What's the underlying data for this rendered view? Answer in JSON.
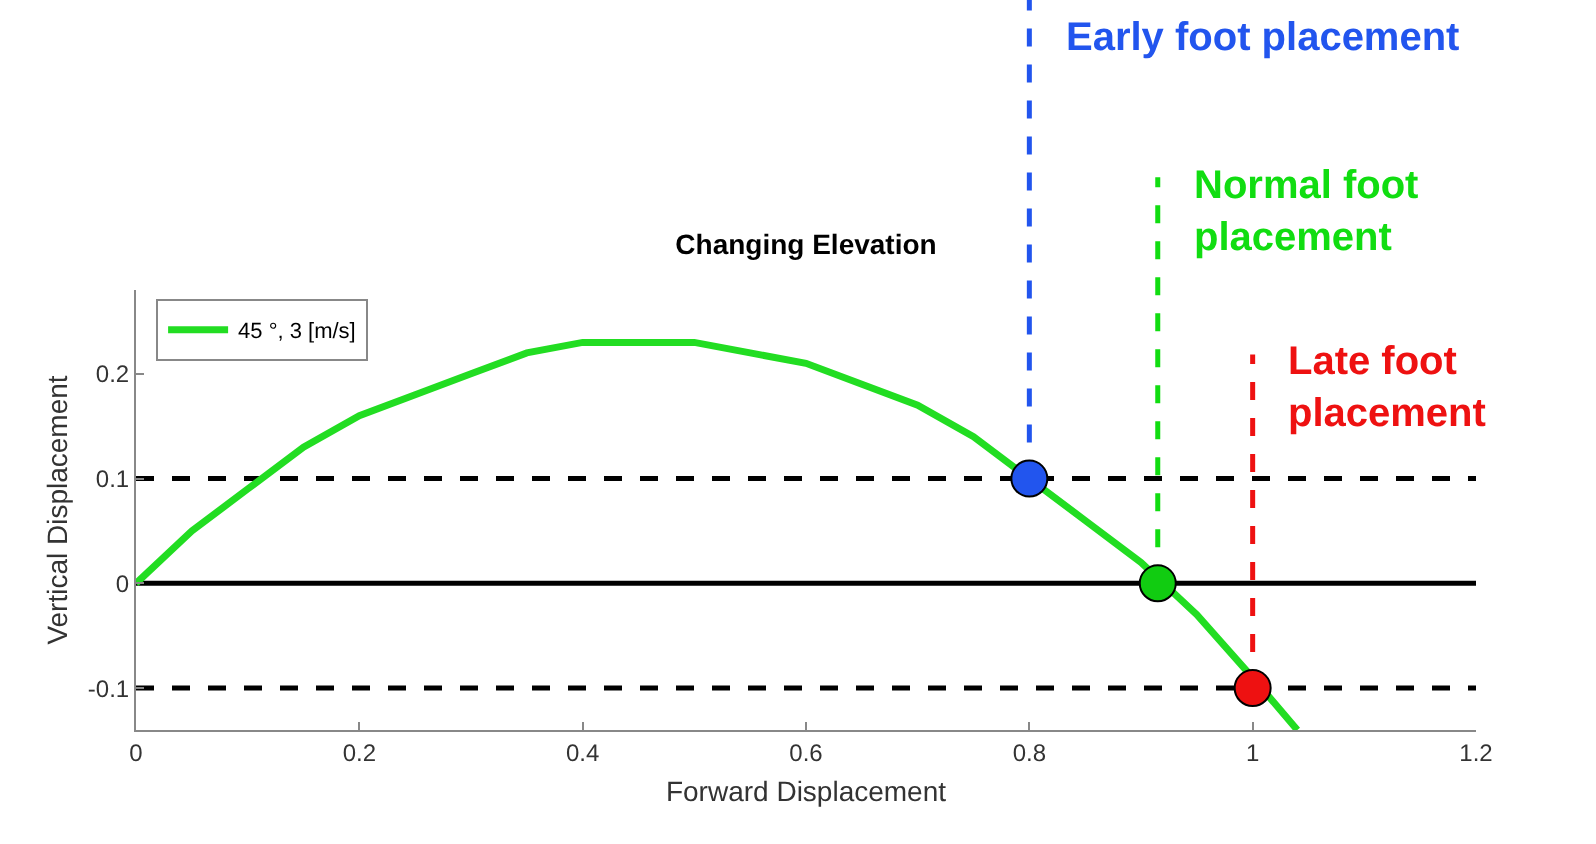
{
  "chart_data": {
    "type": "line",
    "title": "Changing Elevation",
    "xlabel": "Forward Displacement",
    "ylabel": "Vertical Displacement",
    "xlim": [
      0,
      1.2
    ],
    "xticks": [
      0,
      0.2,
      0.4,
      0.6,
      0.8,
      1,
      1.2
    ],
    "ylim": [
      -0.14,
      0.28
    ],
    "yticks": [
      -0.1,
      0,
      0.1,
      0.2
    ],
    "grid": false,
    "legend": "top left",
    "marker": "none",
    "line_style": "solid",
    "series": [
      {
        "name": "45 °, 3 [m/s]",
        "color": "#22dd22",
        "x": [
          0,
          0.05,
          0.1,
          0.15,
          0.2,
          0.25,
          0.3,
          0.35,
          0.4,
          0.45,
          0.5,
          0.55,
          0.6,
          0.65,
          0.7,
          0.75,
          0.85,
          0.9,
          0.95,
          1.0,
          1.04
        ],
        "values": [
          0,
          0.05,
          0.09,
          0.13,
          0.16,
          0.18,
          0.2,
          0.22,
          0.23,
          0.23,
          0.23,
          0.22,
          0.21,
          0.19,
          0.17,
          0.14,
          0.06,
          0.02,
          -0.03,
          -0.09,
          -0.14
        ]
      },
      {
        "type": "scatter",
        "marker": "circle",
        "x": [
          0.8,
          0.915,
          1.0
        ],
        "values": [
          0.1,
          0,
          -0.1
        ],
        "colors": [
          "#2255ee",
          "#11cc11",
          "#ee1111"
        ]
      }
    ],
    "ref_lines": [
      {
        "axis": "y",
        "value": 0.1,
        "line_style": "dashed",
        "color": "#000000"
      },
      {
        "axis": "y",
        "value": 0,
        "line_style": "solid",
        "color": "#000000"
      },
      {
        "axis": "y",
        "value": -0.1,
        "line_style": "dashed",
        "color": "#000000"
      },
      {
        "axis": "x",
        "value": 0.8,
        "label": "Early foot placement",
        "line_style": "dashed",
        "color": "#2255ee"
      },
      {
        "axis": "x",
        "value": 0.915,
        "label": "Normal foot placement",
        "line_style": "dashed",
        "color": "#11dd11"
      },
      {
        "axis": "x",
        "value": 1.0,
        "label": "Late foot placement",
        "line_style": "dashed",
        "color": "#ee1111"
      }
    ]
  }
}
